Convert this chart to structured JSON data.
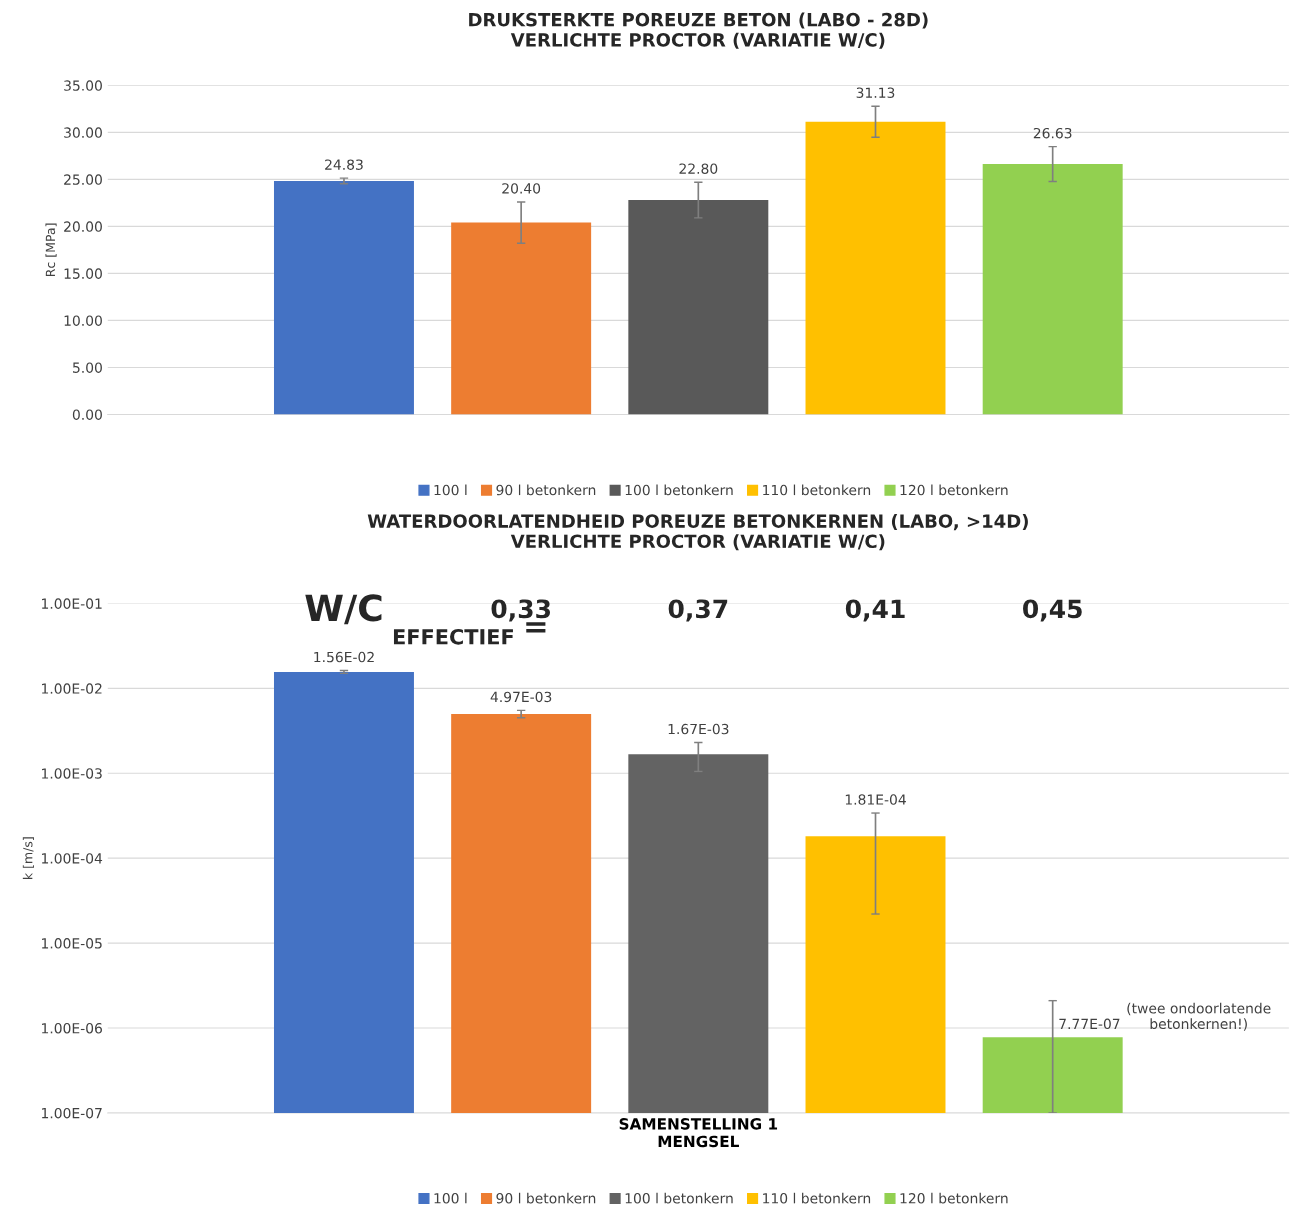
{
  "chart_data": [
    {
      "type": "bar",
      "title": "DRUKSTERKTE POREUZE BETON (LABO - 28D)\nVERLICHTE PROCTOR (VARIATIE W/C)",
      "ylabel": "Rc [MPa]",
      "categories": [
        null
      ],
      "series": [
        {
          "name": "100 l",
          "color": "#4472c4",
          "values": [
            24.83
          ],
          "errors": [
            0.3
          ],
          "value_labels": [
            "24.83"
          ]
        },
        {
          "name": "90 l betonkern",
          "color": "#ed7d31",
          "values": [
            20.4
          ],
          "errors": [
            2.2
          ],
          "value_labels": [
            "20.40"
          ]
        },
        {
          "name": "100 l betonkern",
          "color": "#595959",
          "values": [
            22.8
          ],
          "errors": [
            1.9
          ],
          "value_labels": [
            "22.80"
          ]
        },
        {
          "name": "110 l betonkern",
          "color": "#ffc000",
          "values": [
            31.13
          ],
          "errors": [
            1.65
          ],
          "value_labels": [
            "31.13"
          ]
        },
        {
          "name": "120 l betonkern",
          "color": "#92d050",
          "values": [
            26.63
          ],
          "errors": [
            1.85
          ],
          "value_labels": [
            "26.63"
          ]
        }
      ],
      "ylim": [
        0,
        35
      ],
      "yticks": [
        {
          "value": 0,
          "label": "0.00"
        },
        {
          "value": 5,
          "label": "5.00"
        },
        {
          "value": 10,
          "label": "10.00"
        },
        {
          "value": 15,
          "label": "15.00"
        },
        {
          "value": 20,
          "label": "20.00"
        },
        {
          "value": 25,
          "label": "25.00"
        },
        {
          "value": 30,
          "label": "30.00"
        },
        {
          "value": 35,
          "label": "35.00"
        }
      ],
      "grid": "y",
      "legend": "bottom"
    },
    {
      "type": "bar",
      "title": "WATERDOORLATENDHEID POREUZE BETONKERNEN (LABO, >14D)\nVERLICHTE PROCTOR (VARIATIE W/C)",
      "ylabel": "k [m/s]",
      "xlabel": "MENGSEL",
      "categories": [
        "SAMENSTELLING 1"
      ],
      "series": [
        {
          "name": "100 l",
          "color": "#4472c4",
          "values": [
            0.0156
          ],
          "errors": [
            [
              0.015,
              0.0162
            ]
          ],
          "value_labels": [
            "1.56E-02"
          ]
        },
        {
          "name": "90 l betonkern",
          "color": "#ed7d31",
          "values": [
            0.00497
          ],
          "errors": [
            [
              0.0045,
              0.0055
            ]
          ],
          "value_labels": [
            "4.97E-03"
          ]
        },
        {
          "name": "100 l betonkern",
          "color": "#636363",
          "values": [
            0.00167
          ],
          "errors": [
            [
              0.00105,
              0.0023
            ]
          ],
          "value_labels": [
            "1.67E-03"
          ]
        },
        {
          "name": "110 l betonkern",
          "color": "#ffc000",
          "values": [
            0.000181
          ],
          "errors": [
            [
              2.2e-05,
              0.00034
            ]
          ],
          "value_labels": [
            "1.81E-04"
          ]
        },
        {
          "name": "120 l betonkern",
          "color": "#92d050",
          "values": [
            7.77e-07
          ],
          "errors": [
            [
              1e-07,
              2.1e-06
            ]
          ],
          "value_labels": [
            "7.77E-07"
          ]
        }
      ],
      "log": "y",
      "ylim": [
        1e-07,
        0.1
      ],
      "yticks": [
        {
          "value": 1e-07,
          "label": "1.00E-07"
        },
        {
          "value": 1e-06,
          "label": "1.00E-06"
        },
        {
          "value": 1e-05,
          "label": "1.00E-05"
        },
        {
          "value": 0.0001,
          "label": "1.00E-04"
        },
        {
          "value": 0.001,
          "label": "1.00E-03"
        },
        {
          "value": 0.01,
          "label": "1.00E-02"
        },
        {
          "value": 0.1,
          "label": "1.00E-01"
        }
      ],
      "annotations": [
        "W/C",
        "EFFECTIEF",
        "=",
        "0,33",
        "0,37",
        "0,41",
        "0,45",
        "(twee ondoorlatende\nbetonkernen!)"
      ],
      "grid": "y",
      "legend": "bottom"
    }
  ]
}
